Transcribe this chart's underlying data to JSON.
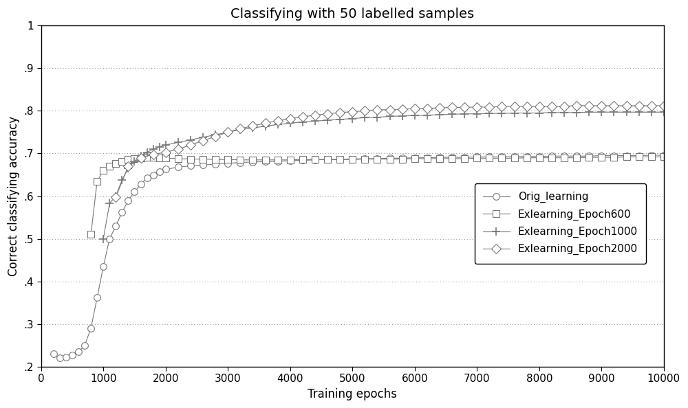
{
  "title": "Classifying with 50 labelled samples",
  "xlabel": "Training epochs",
  "ylabel": "Correct classifying accuracy",
  "xlim": [
    0,
    10000
  ],
  "ylim": [
    0.2,
    1.0
  ],
  "xticks": [
    0,
    1000,
    2000,
    3000,
    4000,
    5000,
    6000,
    7000,
    8000,
    9000,
    10000
  ],
  "xtick_labels": [
    "0",
    "1000",
    "2000",
    "3000",
    "4000",
    "5000",
    "6000",
    "7000",
    "8000",
    "9000",
    "10000"
  ],
  "yticks": [
    0.2,
    0.3,
    0.4,
    0.5,
    0.6,
    0.7,
    0.8,
    0.9,
    1.0
  ],
  "ytick_labels": [
    ".2",
    ".3",
    ".4",
    ".5",
    ".6",
    ".7",
    ".8",
    ".9",
    "1"
  ],
  "background_color": "#ffffff",
  "grid_color": "#888888",
  "line_color": "#777777",
  "series": [
    {
      "label": "Orig_learning",
      "marker": "o",
      "x": [
        200,
        300,
        400,
        500,
        600,
        700,
        800,
        900,
        1000,
        1100,
        1200,
        1300,
        1400,
        1500,
        1600,
        1700,
        1800,
        1900,
        2000,
        2200,
        2400,
        2600,
        2800,
        3000,
        3200,
        3400,
        3600,
        3800,
        4000,
        4200,
        4400,
        4600,
        4800,
        5000,
        5200,
        5400,
        5600,
        5800,
        6000,
        6200,
        6400,
        6600,
        6800,
        7000,
        7200,
        7400,
        7600,
        7800,
        8000,
        8200,
        8400,
        8600,
        8800,
        9000,
        9200,
        9400,
        9600,
        9800,
        10000
      ],
      "y": [
        0.23,
        0.22,
        0.222,
        0.228,
        0.235,
        0.25,
        0.29,
        0.362,
        0.435,
        0.5,
        0.53,
        0.562,
        0.59,
        0.61,
        0.628,
        0.642,
        0.65,
        0.658,
        0.663,
        0.668,
        0.671,
        0.673,
        0.675,
        0.677,
        0.679,
        0.68,
        0.681,
        0.682,
        0.683,
        0.684,
        0.685,
        0.686,
        0.686,
        0.687,
        0.688,
        0.688,
        0.689,
        0.689,
        0.69,
        0.69,
        0.691,
        0.691,
        0.691,
        0.692,
        0.692,
        0.692,
        0.693,
        0.693,
        0.693,
        0.694,
        0.694,
        0.694,
        0.694,
        0.695,
        0.695,
        0.695,
        0.695,
        0.696,
        0.696
      ]
    },
    {
      "label": "Exlearning_Epoch600",
      "marker": "s",
      "x": [
        800,
        900,
        1000,
        1100,
        1200,
        1300,
        1400,
        1500,
        1600,
        1700,
        1800,
        1900,
        2000,
        2200,
        2400,
        2600,
        2800,
        3000,
        3200,
        3400,
        3600,
        3800,
        4000,
        4200,
        4400,
        4600,
        4800,
        5000,
        5200,
        5400,
        5600,
        5800,
        6000,
        6200,
        6400,
        6600,
        6800,
        7000,
        7200,
        7400,
        7600,
        7800,
        8000,
        8200,
        8400,
        8600,
        8800,
        9000,
        9200,
        9400,
        9600,
        9800,
        10000
      ],
      "y": [
        0.51,
        0.635,
        0.66,
        0.67,
        0.676,
        0.682,
        0.686,
        0.688,
        0.69,
        0.691,
        0.691,
        0.69,
        0.689,
        0.688,
        0.687,
        0.687,
        0.686,
        0.686,
        0.685,
        0.685,
        0.685,
        0.685,
        0.685,
        0.686,
        0.686,
        0.686,
        0.686,
        0.686,
        0.687,
        0.687,
        0.687,
        0.687,
        0.688,
        0.688,
        0.688,
        0.688,
        0.688,
        0.689,
        0.689,
        0.689,
        0.689,
        0.69,
        0.69,
        0.69,
        0.69,
        0.69,
        0.691,
        0.691,
        0.691,
        0.692,
        0.692,
        0.692,
        0.692
      ]
    },
    {
      "label": "Exlearning_Epoch1000",
      "marker": "+",
      "x": [
        1000,
        1100,
        1200,
        1300,
        1400,
        1500,
        1600,
        1700,
        1800,
        1900,
        2000,
        2200,
        2400,
        2600,
        2800,
        3000,
        3200,
        3400,
        3600,
        3800,
        4000,
        4200,
        4400,
        4600,
        4800,
        5000,
        5200,
        5400,
        5600,
        5800,
        6000,
        6200,
        6400,
        6600,
        6800,
        7000,
        7200,
        7400,
        7600,
        7800,
        8000,
        8200,
        8400,
        8600,
        8800,
        9000,
        9200,
        9400,
        9600,
        9800,
        10000
      ],
      "y": [
        0.5,
        0.583,
        0.6,
        0.638,
        0.665,
        0.682,
        0.695,
        0.703,
        0.71,
        0.716,
        0.72,
        0.726,
        0.732,
        0.738,
        0.744,
        0.75,
        0.756,
        0.76,
        0.764,
        0.768,
        0.771,
        0.774,
        0.776,
        0.778,
        0.78,
        0.782,
        0.784,
        0.785,
        0.787,
        0.788,
        0.789,
        0.79,
        0.791,
        0.792,
        0.793,
        0.793,
        0.794,
        0.794,
        0.795,
        0.795,
        0.795,
        0.796,
        0.796,
        0.796,
        0.797,
        0.797,
        0.797,
        0.797,
        0.797,
        0.797,
        0.797
      ]
    },
    {
      "label": "Exlearning_Epoch2000",
      "marker": "D",
      "x": [
        1200,
        1400,
        1600,
        1800,
        2000,
        2200,
        2400,
        2600,
        2800,
        3000,
        3200,
        3400,
        3600,
        3800,
        4000,
        4200,
        4400,
        4600,
        4800,
        5000,
        5200,
        5400,
        5600,
        5800,
        6000,
        6200,
        6400,
        6600,
        6800,
        7000,
        7200,
        7400,
        7600,
        7800,
        8000,
        8200,
        8400,
        8600,
        8800,
        9000,
        9200,
        9400,
        9600,
        9800,
        10000
      ],
      "y": [
        0.598,
        0.67,
        0.69,
        0.698,
        0.703,
        0.71,
        0.72,
        0.73,
        0.74,
        0.75,
        0.758,
        0.765,
        0.771,
        0.777,
        0.782,
        0.786,
        0.79,
        0.793,
        0.796,
        0.798,
        0.8,
        0.802,
        0.803,
        0.804,
        0.805,
        0.806,
        0.807,
        0.808,
        0.808,
        0.809,
        0.809,
        0.81,
        0.81,
        0.81,
        0.811,
        0.811,
        0.811,
        0.812,
        0.812,
        0.812,
        0.812,
        0.812,
        0.812,
        0.812,
        0.812
      ]
    }
  ]
}
